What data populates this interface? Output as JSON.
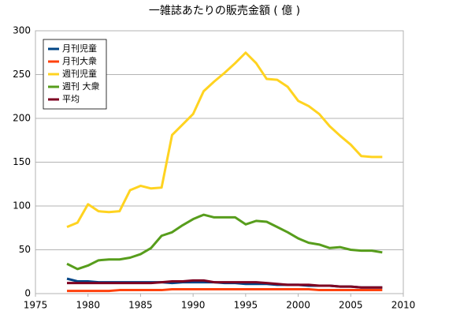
{
  "chart_data": {
    "type": "line",
    "title": "一雑誌あたりの販売金額 ( 億 )",
    "x": [
      1978,
      1979,
      1980,
      1981,
      1982,
      1983,
      1984,
      1985,
      1986,
      1987,
      1988,
      1989,
      1990,
      1991,
      1992,
      1993,
      1994,
      1995,
      1996,
      1997,
      1998,
      1999,
      2000,
      2001,
      2002,
      2003,
      2004,
      2005,
      2006,
      2007,
      2008
    ],
    "series": [
      {
        "name": "月刊児童",
        "color": "#004586",
        "values": [
          17,
          14,
          14,
          13,
          13,
          13,
          13,
          13,
          13,
          13,
          12,
          13,
          13,
          13,
          13,
          12,
          12,
          11,
          11,
          11,
          10,
          10,
          10,
          9,
          9,
          9,
          8,
          8,
          7,
          7,
          7
        ]
      },
      {
        "name": "月刊大衆",
        "color": "#ff420e",
        "values": [
          3,
          3,
          3,
          3,
          3,
          4,
          4,
          4,
          4,
          4,
          5,
          5,
          5,
          5,
          5,
          5,
          5,
          5,
          5,
          5,
          5,
          5,
          5,
          5,
          4,
          4,
          4,
          4,
          4,
          4,
          4
        ]
      },
      {
        "name": "週刊児童",
        "color": "#ffd320",
        "values": [
          76,
          81,
          102,
          94,
          93,
          94,
          118,
          123,
          120,
          121,
          181,
          193,
          205,
          231,
          242,
          252,
          263,
          275,
          263,
          245,
          244,
          236,
          220,
          214,
          205,
          191,
          180,
          170,
          157,
          156,
          156
        ]
      },
      {
        "name": "週刊 大衆",
        "color": "#579d1c",
        "values": [
          34,
          28,
          32,
          38,
          39,
          39,
          41,
          45,
          52,
          66,
          70,
          78,
          85,
          90,
          87,
          87,
          87,
          79,
          83,
          82,
          76,
          70,
          63,
          58,
          56,
          52,
          53,
          50,
          49,
          49,
          47
        ]
      },
      {
        "name": "平均",
        "color": "#7e0021",
        "values": [
          12,
          12,
          12,
          12,
          12,
          12,
          12,
          12,
          12,
          13,
          14,
          14,
          15,
          15,
          13,
          13,
          13,
          13,
          13,
          12,
          11,
          10,
          10,
          10,
          9,
          9,
          8,
          8,
          7,
          7,
          7
        ]
      }
    ],
    "xlim": [
      1975,
      2010
    ],
    "xticks": [
      1975,
      1980,
      1985,
      1990,
      1995,
      2000,
      2005,
      2010
    ],
    "ylim": [
      0,
      300
    ],
    "yticks": [
      0,
      50,
      100,
      150,
      200,
      250,
      300
    ],
    "grid": true,
    "legend": "top-left"
  }
}
